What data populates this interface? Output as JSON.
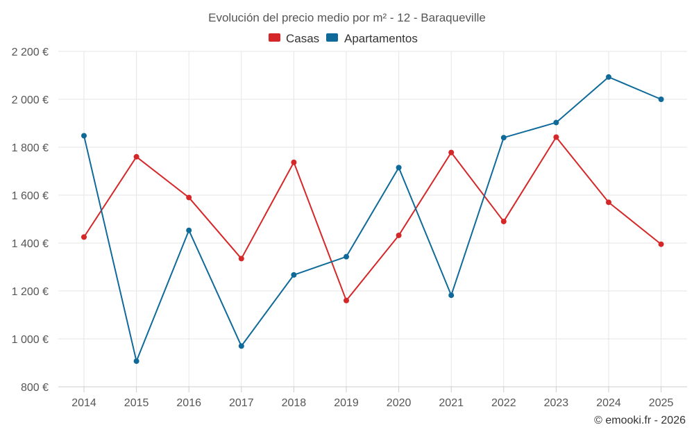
{
  "chart_data": {
    "type": "line",
    "title": "Evolución del precio medio por m² - 12 - Baraqueville",
    "categories": [
      "2014",
      "2015",
      "2016",
      "2017",
      "2018",
      "2019",
      "2020",
      "2021",
      "2022",
      "2023",
      "2024",
      "2025"
    ],
    "series": [
      {
        "name": "Casas",
        "color": "#d62728",
        "values": [
          1425,
          1760,
          1590,
          1335,
          1737,
          1160,
          1432,
          1778,
          1490,
          1842,
          1570,
          1395
        ]
      },
      {
        "name": "Apartamentos",
        "color": "#0f6a9a",
        "values": [
          1848,
          907,
          1453,
          970,
          1267,
          1343,
          1715,
          1182,
          1840,
          1903,
          2093,
          2000
        ]
      }
    ],
    "ylim": [
      800,
      2200
    ],
    "yticks": [
      800,
      1000,
      1200,
      1400,
      1600,
      1800,
      2000,
      2200
    ],
    "ytick_labels": [
      "800 €",
      "1 000 €",
      "1 200 €",
      "1 400 €",
      "1 600 €",
      "1 800 €",
      "2 000 €",
      "2 200 €"
    ],
    "xlabel": "",
    "ylabel": "",
    "grid": true,
    "legend_position": "top-center"
  },
  "credit": "© emooki.fr - 2026"
}
